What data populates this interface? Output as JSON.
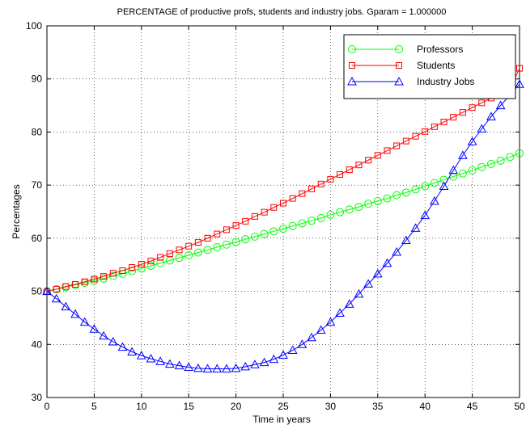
{
  "chart_data": {
    "type": "line",
    "title": "PERCENTAGE of productive profs, students and industry jobs. Gparam = 1.000000",
    "xlabel": "Time in years",
    "ylabel": "Percentages",
    "xlim": [
      0,
      50
    ],
    "ylim": [
      30,
      100
    ],
    "xticks": [
      "0",
      "5",
      "10",
      "15",
      "20",
      "25",
      "30",
      "35",
      "40",
      "45",
      "50"
    ],
    "yticks": [
      "30",
      "40",
      "50",
      "60",
      "70",
      "80",
      "90",
      "100"
    ],
    "grid": true,
    "legend_position": "top-right",
    "x": [
      0,
      1,
      2,
      3,
      4,
      5,
      6,
      7,
      8,
      9,
      10,
      11,
      12,
      13,
      14,
      15,
      16,
      17,
      18,
      19,
      20,
      21,
      22,
      23,
      24,
      25,
      26,
      27,
      28,
      29,
      30,
      31,
      32,
      33,
      34,
      35,
      36,
      37,
      38,
      39,
      40,
      41,
      42,
      43,
      44,
      45,
      46,
      47,
      48,
      49,
      50
    ],
    "series": [
      {
        "name": "Professors",
        "color": "#00ff00",
        "marker": "circle",
        "values": [
          50.0,
          50.4,
          50.8,
          51.2,
          51.6,
          52.0,
          52.4,
          52.9,
          53.3,
          53.8,
          54.3,
          54.8,
          55.3,
          55.8,
          56.3,
          56.8,
          57.3,
          57.8,
          58.3,
          58.8,
          59.3,
          59.8,
          60.3,
          60.8,
          61.3,
          61.8,
          62.3,
          62.8,
          63.3,
          63.8,
          64.4,
          64.9,
          65.4,
          65.9,
          66.5,
          67.0,
          67.5,
          68.1,
          68.6,
          69.2,
          69.8,
          70.4,
          71.0,
          71.6,
          72.2,
          72.8,
          73.4,
          74.0,
          74.6,
          75.3,
          76.0
        ]
      },
      {
        "name": "Students",
        "color": "#ff0000",
        "marker": "square",
        "values": [
          50.0,
          50.4,
          50.9,
          51.3,
          51.8,
          52.3,
          52.8,
          53.4,
          53.9,
          54.5,
          55.1,
          55.7,
          56.4,
          57.1,
          57.8,
          58.5,
          59.2,
          60.0,
          60.8,
          61.6,
          62.4,
          63.2,
          64.1,
          64.9,
          65.8,
          66.6,
          67.5,
          68.4,
          69.3,
          70.2,
          71.1,
          72.0,
          72.9,
          73.8,
          74.7,
          75.6,
          76.5,
          77.4,
          78.3,
          79.2,
          80.1,
          81.0,
          81.9,
          82.8,
          83.7,
          84.6,
          85.5,
          86.4,
          87.3,
          88.2,
          92.0
        ]
      },
      {
        "name": "Industry Jobs",
        "color": "#0000ff",
        "marker": "triangle",
        "values": [
          50.0,
          48.6,
          47.1,
          45.7,
          44.2,
          42.9,
          41.6,
          40.5,
          39.5,
          38.6,
          37.9,
          37.3,
          36.8,
          36.3,
          36.0,
          35.7,
          35.5,
          35.4,
          35.4,
          35.4,
          35.5,
          35.8,
          36.2,
          36.6,
          37.2,
          38.0,
          38.9,
          40.0,
          41.3,
          42.7,
          44.2,
          45.9,
          47.6,
          49.5,
          51.4,
          53.3,
          55.3,
          57.4,
          59.6,
          61.9,
          64.3,
          67.0,
          69.8,
          72.8,
          75.6,
          78.2,
          80.6,
          82.9,
          85.0,
          87.0,
          89.0
        ]
      }
    ]
  }
}
